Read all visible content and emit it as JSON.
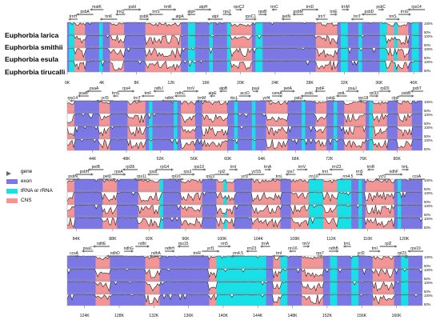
{
  "species": [
    "Euphorbia larica",
    "Euphorbia smithii",
    "Euphorbia esula",
    "Euphorbia tirucalli"
  ],
  "legend": [
    {
      "label": "gene",
      "kind": "arrow",
      "color": "#666666"
    },
    {
      "label": "exon",
      "kind": "box",
      "color": "#7b78e6"
    },
    {
      "label": "tRNA or rRNA",
      "kind": "box",
      "color": "#17e0e6"
    },
    {
      "label": "CNS",
      "kind": "box",
      "color": "#f49595"
    }
  ],
  "colors": {
    "exon": "#7b78e6",
    "rna": "#17e0e6",
    "cns": "#f49595",
    "frame": "#9a9a9a",
    "trace": "#222222"
  },
  "y_axis_labels": [
    "100%",
    "50%"
  ],
  "rows": [
    {
      "start_k": 0,
      "end_k": 41,
      "ticks": [
        "0K",
        "4K",
        "8K",
        "12K",
        "16K",
        "20K",
        "24K",
        "28K",
        "32K",
        "36K",
        "40K"
      ],
      "genes": [
        "trnH",
        "psbA",
        "matK",
        "trnK",
        "trnQ",
        "psbI",
        "psbK",
        "trnS",
        "trnR",
        "atpA",
        "atpF",
        "atpH",
        "atpI",
        "rps2",
        "rpoC2",
        "rpoC1",
        "rpoB",
        "trnC",
        "petN",
        "psbM",
        "trnD",
        "trnY",
        "trnE",
        "trnM",
        "trnT",
        "psbD",
        "psbC",
        "trnS",
        "trnG",
        "rps14"
      ]
    },
    {
      "start_k": 41,
      "end_k": 83,
      "ticks": [
        "44K",
        "48K",
        "52K",
        "56K",
        "60K",
        "64K",
        "68K",
        "72K",
        "76K",
        "80K"
      ],
      "genes": [
        "rps14",
        "psaB",
        "psaA",
        "ycf3",
        "trnS",
        "rps4",
        "trnT",
        "trnF",
        "ndhJ",
        "ndhK",
        "ndhC",
        "trnV",
        "trnM",
        "atpE",
        "atpB",
        "rbcL",
        "accD",
        "psaI",
        "ycf4",
        "cemA",
        "petA",
        "psbJ",
        "psbL",
        "psbF",
        "psbE",
        "petL",
        "psaJ",
        "rps18",
        "rpl33",
        "rpl20",
        "clpP",
        "psbB",
        "psbT"
      ]
    },
    {
      "start_k": 83,
      "end_k": 122,
      "ticks": [
        "84K",
        "88K",
        "92K",
        "96K",
        "100K",
        "104K",
        "108K",
        "112K",
        "116K",
        "120K"
      ],
      "genes": [
        "psbN",
        "psbH",
        "petB",
        "petD",
        "rpoA",
        "rpl36",
        "rps11",
        "rps8",
        "rpl14",
        "rpl16",
        "rps3",
        "rps19",
        "rpl22",
        "rpl2",
        "trnI",
        "ycf2",
        "ycf15",
        "trnA",
        "trnL",
        "rps7",
        "trnV",
        "rrn16",
        "trnI",
        "rrn23",
        "rrn4.5",
        "rrn5",
        "trnR",
        "ycf1",
        "ndhF",
        "trnL",
        "ccsA"
      ]
    },
    {
      "start_k": 122,
      "end_k": 163,
      "ticks": [
        "124K",
        "128K",
        "132K",
        "136K",
        "140K",
        "144K",
        "148K",
        "152K",
        "156K",
        "160K"
      ],
      "genes": [
        "ccsA",
        "psaC",
        "ndhE",
        "ndhD",
        "ndhG",
        "ndhI",
        "ndhA",
        "ndhH",
        "rps15",
        "trnR",
        "ycf1",
        "rrn5",
        "rrn4.5",
        "rrn23",
        "trnA",
        "trnI",
        "rrn16",
        "trnV",
        "rps7",
        "ndhB",
        "trnL",
        "ycf2",
        "trnI",
        "rpl2",
        "rpl23",
        "rps19"
      ]
    }
  ]
}
